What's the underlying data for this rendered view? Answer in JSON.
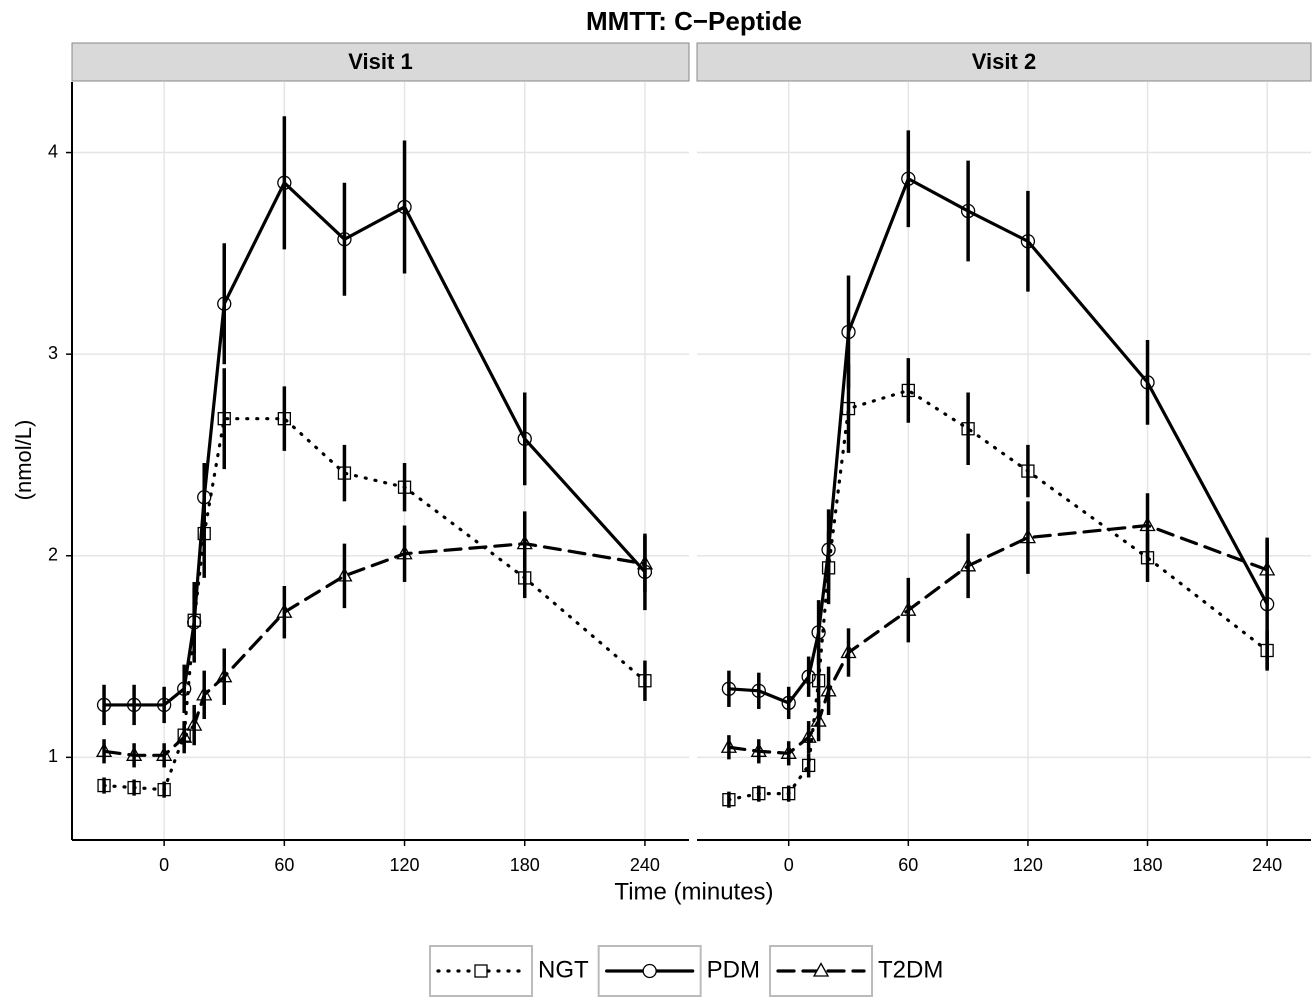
{
  "title": "MMTT: C−Peptide",
  "x_label": "Time (minutes)",
  "y_label": "(nmol/L)",
  "chart_data": [
    {
      "type": "line",
      "title": "Visit 1",
      "x": [
        -30,
        -15,
        0,
        10,
        15,
        20,
        30,
        60,
        90,
        120,
        180,
        240
      ],
      "series": [
        {
          "name": "NGT",
          "color": "#000000",
          "dash": "dotted",
          "marker": "square",
          "values": [
            0.86,
            0.85,
            0.84,
            1.11,
            1.68,
            2.11,
            2.68,
            2.68,
            2.41,
            2.34,
            1.89,
            1.38
          ],
          "errors": [
            0.04,
            0.04,
            0.04,
            0.06,
            0.16,
            0.22,
            0.25,
            0.16,
            0.14,
            0.12,
            0.1,
            0.1
          ]
        },
        {
          "name": "PDM",
          "color": "#000000",
          "dash": "solid",
          "marker": "circle",
          "values": [
            1.26,
            1.26,
            1.26,
            1.34,
            1.67,
            2.29,
            3.25,
            3.85,
            3.57,
            3.73,
            2.58,
            1.92
          ],
          "errors": [
            0.1,
            0.1,
            0.09,
            0.12,
            0.2,
            0.17,
            0.3,
            0.33,
            0.28,
            0.33,
            0.23,
            0.19
          ]
        },
        {
          "name": "T2DM",
          "color": "#000000",
          "dash": "dashed",
          "marker": "triangle",
          "values": [
            1.03,
            1.01,
            1.01,
            1.1,
            1.16,
            1.31,
            1.4,
            1.72,
            1.9,
            2.01,
            2.06,
            1.96
          ],
          "errors": [
            0.06,
            0.06,
            0.06,
            0.08,
            0.1,
            0.12,
            0.14,
            0.13,
            0.16,
            0.14,
            0.16,
            0.14
          ]
        }
      ],
      "xlim": [
        -46,
        262
      ],
      "ylim": [
        0.59,
        4.35
      ],
      "xticks": [
        0,
        60,
        120,
        180,
        240
      ],
      "yticks": [
        1,
        2,
        3,
        4
      ],
      "grid": true
    },
    {
      "type": "line",
      "title": "Visit 2",
      "x": [
        -30,
        -15,
        0,
        10,
        15,
        20,
        30,
        60,
        90,
        120,
        180,
        240
      ],
      "series": [
        {
          "name": "NGT",
          "color": "#000000",
          "dash": "dotted",
          "marker": "square",
          "values": [
            0.79,
            0.82,
            0.82,
            0.96,
            1.38,
            1.94,
            2.73,
            2.82,
            2.63,
            2.42,
            1.99,
            1.53
          ],
          "errors": [
            0.04,
            0.04,
            0.04,
            0.06,
            0.13,
            0.18,
            0.22,
            0.16,
            0.18,
            0.13,
            0.12,
            0.1
          ]
        },
        {
          "name": "PDM",
          "color": "#000000",
          "dash": "solid",
          "marker": "circle",
          "values": [
            1.34,
            1.33,
            1.27,
            1.4,
            1.62,
            2.03,
            3.11,
            3.87,
            3.71,
            3.56,
            2.86,
            1.76
          ],
          "errors": [
            0.09,
            0.09,
            0.08,
            0.1,
            0.16,
            0.2,
            0.28,
            0.24,
            0.25,
            0.25,
            0.21,
            0.32
          ]
        },
        {
          "name": "T2DM",
          "color": "#000000",
          "dash": "dashed",
          "marker": "triangle",
          "values": [
            1.05,
            1.03,
            1.02,
            1.1,
            1.18,
            1.33,
            1.52,
            1.73,
            1.95,
            2.09,
            2.15,
            1.93
          ],
          "errors": [
            0.06,
            0.06,
            0.06,
            0.08,
            0.1,
            0.12,
            0.12,
            0.16,
            0.16,
            0.18,
            0.16,
            0.16
          ]
        }
      ],
      "xlim": [
        -46,
        262
      ],
      "ylim": [
        0.59,
        4.35
      ],
      "xticks": [
        0,
        60,
        120,
        180,
        240
      ],
      "yticks": [
        1,
        2,
        3,
        4
      ],
      "grid": true
    }
  ]
}
